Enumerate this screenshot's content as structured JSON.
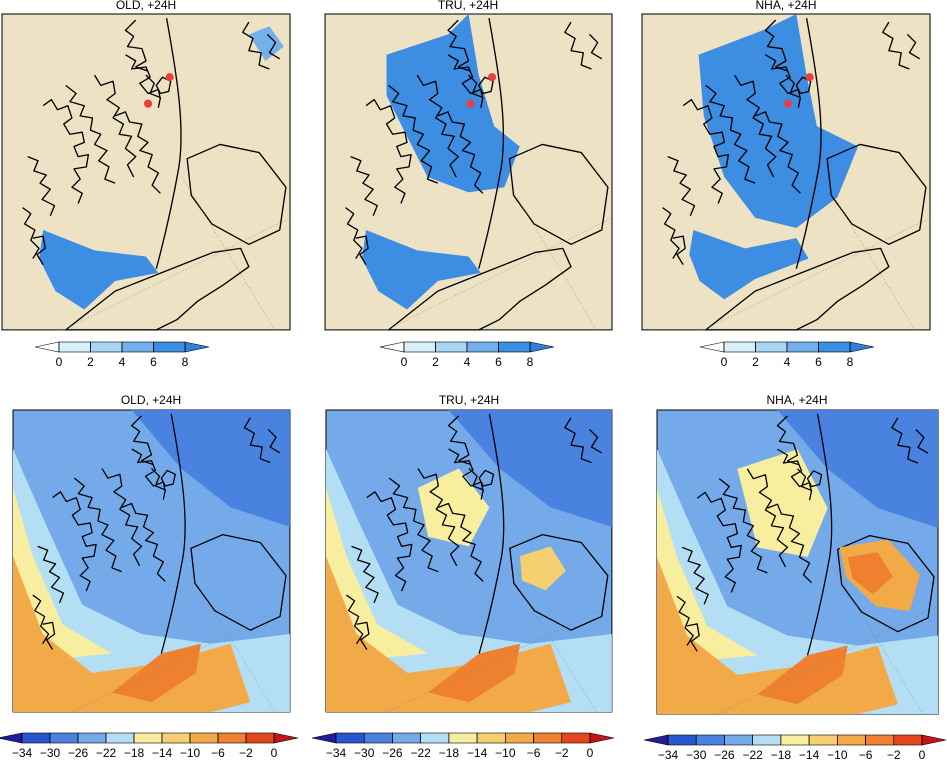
{
  "panels": [
    {
      "title": "OLD, +24H",
      "colorbar": {
        "ticks": [
          0,
          2,
          4,
          6,
          8
        ],
        "colors": [
          "#d8f0fa",
          "#a9d6f3",
          "#72b1ea",
          "#3d8ee3"
        ],
        "extend_colors": [
          "#ffffff",
          "#2f7fdc"
        ]
      }
    },
    {
      "title": "TRU, +24H",
      "colorbar": {
        "ticks": [
          0,
          2,
          4,
          6,
          8
        ],
        "colors": [
          "#d8f0fa",
          "#a9d6f3",
          "#72b1ea",
          "#3d8ee3"
        ],
        "extend_colors": [
          "#ffffff",
          "#2f7fdc"
        ]
      }
    },
    {
      "title": "NHA, +24H",
      "colorbar": {
        "ticks": [
          0,
          2,
          4,
          6,
          8
        ],
        "colors": [
          "#d8f0fa",
          "#a9d6f3",
          "#72b1ea",
          "#3d8ee3"
        ],
        "extend_colors": [
          "#ffffff",
          "#2f7fdc"
        ]
      }
    },
    {
      "title": "OLD, +24H",
      "colorbar": {
        "ticks": [
          {
            "value": -34,
            "label": "−34"
          },
          {
            "value": -30,
            "label": "−30"
          },
          {
            "value": -26,
            "label": "−26"
          },
          {
            "value": -22,
            "label": "−22"
          },
          {
            "value": -18,
            "label": "−18"
          },
          {
            "value": -14,
            "label": "−14"
          },
          {
            "value": -10,
            "label": "−10"
          },
          {
            "value": -6,
            "label": "−6"
          },
          {
            "value": -2,
            "label": "−2"
          },
          0
        ],
        "colors": [
          "#2a55d0",
          "#4a82df",
          "#74aae9",
          "#b3def4",
          "#f8eea0",
          "#f6cf70",
          "#f2aa48",
          "#ee8030",
          "#e5461c"
        ],
        "extend_colors": [
          "#221c9c",
          "#c2141a"
        ]
      }
    },
    {
      "title": "TRU, +24H",
      "colorbar": {
        "ticks": [
          {
            "value": -34,
            "label": "−34"
          },
          {
            "value": -30,
            "label": "−30"
          },
          {
            "value": -26,
            "label": "−26"
          },
          {
            "value": -22,
            "label": "−22"
          },
          {
            "value": -18,
            "label": "−18"
          },
          {
            "value": -14,
            "label": "−14"
          },
          {
            "value": -10,
            "label": "−10"
          },
          {
            "value": -6,
            "label": "−6"
          },
          {
            "value": -2,
            "label": "−2"
          },
          0
        ],
        "colors": [
          "#2a55d0",
          "#4a82df",
          "#74aae9",
          "#b3def4",
          "#f8eea0",
          "#f6cf70",
          "#f2aa48",
          "#ee8030",
          "#e5461c"
        ],
        "extend_colors": [
          "#221c9c",
          "#c2141a"
        ]
      }
    },
    {
      "title": "NHA, +24H",
      "colorbar": {
        "ticks": [
          {
            "value": -34,
            "label": "−34"
          },
          {
            "value": -30,
            "label": "−30"
          },
          {
            "value": -26,
            "label": "−26"
          },
          {
            "value": -22,
            "label": "−22"
          },
          {
            "value": -18,
            "label": "−18"
          },
          {
            "value": -14,
            "label": "−14"
          },
          {
            "value": -10,
            "label": "−10"
          },
          {
            "value": -6,
            "label": "−6"
          },
          {
            "value": -2,
            "label": "−2"
          },
          0
        ],
        "colors": [
          "#2a55d0",
          "#4a82df",
          "#74aae9",
          "#b3def4",
          "#f8eea0",
          "#f6cf70",
          "#f2aa48",
          "#ee8030",
          "#e5461c"
        ],
        "extend_colors": [
          "#221c9c",
          "#c2141a"
        ]
      }
    }
  ]
}
